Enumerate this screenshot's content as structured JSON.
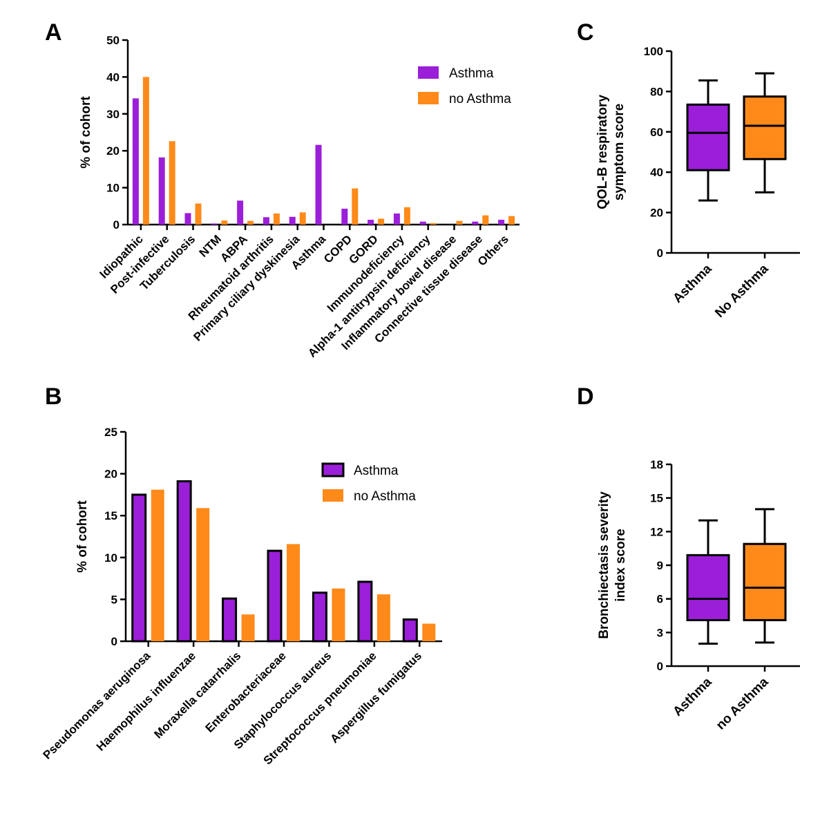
{
  "colors": {
    "asthma": "#9b1fd8",
    "no_asthma": "#ff8a1a",
    "axis": "#000000"
  },
  "chart_data": [
    {
      "id": "A",
      "type": "bar",
      "title": "A",
      "ylabel": "% of cohort",
      "ylim": [
        0,
        50
      ],
      "yticks": [
        0,
        10,
        20,
        30,
        40,
        50
      ],
      "categories": [
        "Idiopathic",
        "Post-infective",
        "Tuberculosis",
        "NTM",
        "ABPA",
        "Rheumatoid arthritis",
        "Primary ciliary dyskinesia",
        "Asthma",
        "COPD",
        "GORD",
        "Immunodeficiency",
        "Alpha-1 antitrypsin deficiency",
        "Inflammatory bowel disease",
        "Connective tissue disease",
        "Others"
      ],
      "series": [
        {
          "name": "Asthma",
          "values": [
            34.2,
            18.2,
            3.1,
            0.3,
            6.5,
            2.0,
            2.1,
            21.6,
            4.3,
            1.3,
            3.0,
            0.8,
            0,
            0.8,
            1.3
          ]
        },
        {
          "name": "no Asthma",
          "values": [
            40.0,
            22.6,
            5.7,
            1.1,
            1.0,
            3.0,
            3.3,
            0,
            9.8,
            1.6,
            4.7,
            0.4,
            1.0,
            2.5,
            2.3
          ]
        }
      ],
      "legend": [
        "Asthma",
        "no Asthma"
      ]
    },
    {
      "id": "B",
      "type": "bar",
      "title": "B",
      "ylabel": "% of cohort",
      "ylim": [
        0,
        25
      ],
      "yticks": [
        0,
        5,
        10,
        15,
        20,
        25
      ],
      "categories": [
        "Pseudomonas aeruginosa",
        "Haemophilus influenzae",
        "Moraxella catarrhalis",
        "Enterobacteriaceae",
        "Staphylococcus aureus",
        "Streptococcus pneumoniae",
        "Aspergillus fumigatus"
      ],
      "series": [
        {
          "name": "Asthma",
          "values": [
            17.5,
            19.1,
            5.1,
            10.8,
            5.8,
            7.1,
            2.6
          ]
        },
        {
          "name": "no Asthma",
          "values": [
            18.1,
            15.9,
            3.2,
            11.6,
            6.3,
            5.6,
            2.1
          ]
        }
      ],
      "legend": [
        "Asthma",
        "no Asthma"
      ]
    },
    {
      "id": "C",
      "type": "box",
      "title": "C",
      "ylabel": [
        "QOL-B respiratory",
        "symptom score"
      ],
      "ylim": [
        0,
        100
      ],
      "yticks": [
        0,
        20,
        40,
        60,
        80,
        100
      ],
      "categories": [
        "Asthma",
        "No Asthma"
      ],
      "boxes": [
        {
          "min": 26,
          "q1": 41,
          "median": 59.5,
          "q3": 73.5,
          "max": 85.5
        },
        {
          "min": 30,
          "q1": 46.5,
          "median": 63,
          "q3": 77.5,
          "max": 89
        }
      ]
    },
    {
      "id": "D",
      "type": "box",
      "title": "D",
      "ylabel": [
        "Bronchiectasis severity",
        "index score"
      ],
      "ylim": [
        0,
        18
      ],
      "yticks": [
        0,
        3,
        6,
        9,
        12,
        15,
        18
      ],
      "categories": [
        "Asthma",
        "no Asthma"
      ],
      "boxes": [
        {
          "min": 2,
          "q1": 4.1,
          "median": 6,
          "q3": 9.9,
          "max": 13
        },
        {
          "min": 2.1,
          "q1": 4.1,
          "median": 7,
          "q3": 10.9,
          "max": 14
        }
      ]
    }
  ]
}
